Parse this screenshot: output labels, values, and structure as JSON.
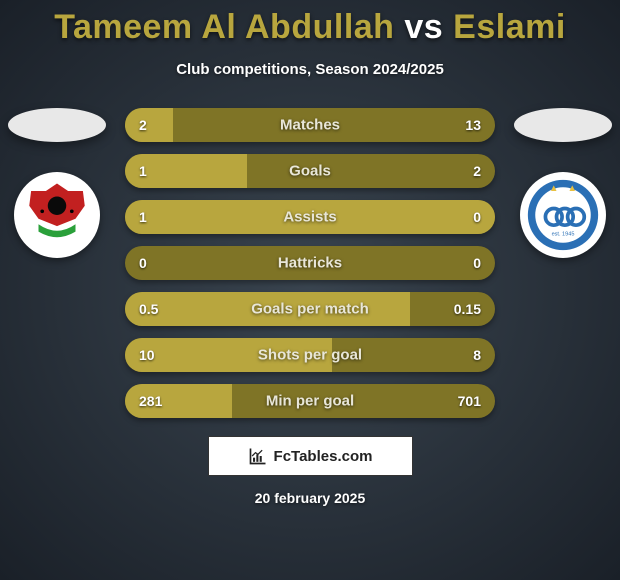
{
  "title": {
    "player1": "Tameem Al Abdullah",
    "vs": "vs",
    "player2": "Eslami",
    "color": "#b8a63e"
  },
  "subtitle": "Club competitions, Season 2024/2025",
  "left": {
    "ellipse_color": "#e8e8e8",
    "crest": {
      "bg": "#ffffff",
      "primary": "#c22020",
      "secondary": "#0a0a0a",
      "accent": "#2aa03a"
    }
  },
  "right": {
    "ellipse_color": "#e8e8e8",
    "crest": {
      "bg": "#ffffff",
      "primary": "#2a6fb5",
      "accent": "#e8c040"
    }
  },
  "bars": {
    "track_color": "#7f7426",
    "fill_color": "#b8a63e",
    "rows": [
      {
        "left_val": "2",
        "label": "Matches",
        "right_val": "13",
        "left_pct": 13,
        "right_pct": 87
      },
      {
        "left_val": "1",
        "label": "Goals",
        "right_val": "2",
        "left_pct": 33,
        "right_pct": 67
      },
      {
        "left_val": "1",
        "label": "Assists",
        "right_val": "0",
        "left_pct": 100,
        "right_pct": 0
      },
      {
        "left_val": "0",
        "label": "Hattricks",
        "right_val": "0",
        "left_pct": 0,
        "right_pct": 0
      },
      {
        "left_val": "0.5",
        "label": "Goals per match",
        "right_val": "0.15",
        "left_pct": 77,
        "right_pct": 23
      },
      {
        "left_val": "10",
        "label": "Shots per goal",
        "right_val": "8",
        "left_pct": 56,
        "right_pct": 44
      },
      {
        "left_val": "281",
        "label": "Min per goal",
        "right_val": "701",
        "left_pct": 29,
        "right_pct": 71
      }
    ]
  },
  "footer": {
    "site": "FcTables.com"
  },
  "date": "20 february 2025"
}
